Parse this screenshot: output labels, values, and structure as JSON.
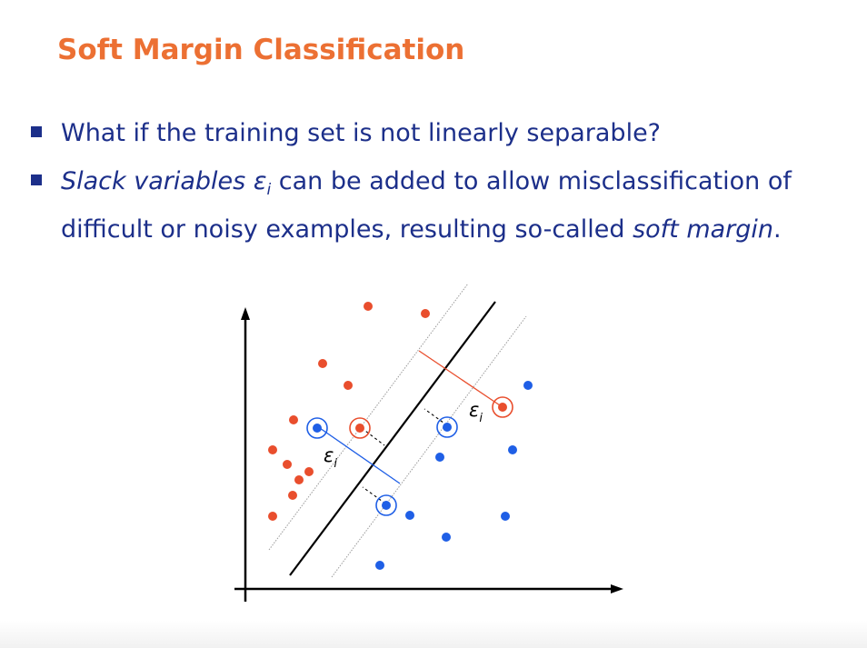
{
  "slide": {
    "title": "Soft Margin Classification",
    "bullets": [
      {
        "text": "What if the training set is not linearly separable?"
      },
      {
        "part1_italic": "Slack variables",
        "symbol": "ε",
        "symbol_sub": "i",
        "part2": " can be added to allow misclassification of difficult or noisy examples, resulting so-called ",
        "part3_italic": "soft margin",
        "part4": "."
      }
    ]
  },
  "diagram": {
    "slack_label_right": "ε",
    "slack_label_right_sub": "i",
    "slack_label_left": "ε",
    "slack_label_left_sub": "i",
    "colors": {
      "red_class": "#e94e2d",
      "blue_class": "#1f5fe6",
      "axis": "#000000",
      "margin": "#aaaaaa",
      "bullet_text": "#1c2f8a",
      "title": "#ec7033"
    }
  }
}
